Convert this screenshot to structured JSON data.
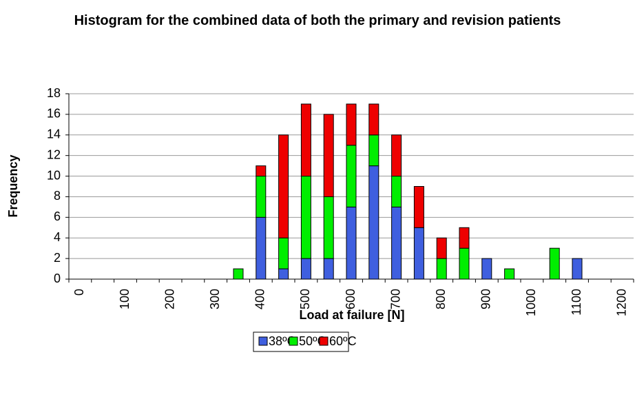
{
  "chart_data": {
    "type": "stacked_bar",
    "title": "Histogram for the combined data of both the primary and revision patients",
    "x_label": "Load at failure [N]",
    "y_label": "Frequency",
    "categories": [
      "0",
      null,
      "100",
      null,
      "200",
      null,
      "300",
      null,
      "400",
      null,
      "500",
      null,
      "600",
      null,
      "700",
      null,
      "800",
      null,
      "900",
      null,
      "1000",
      null,
      "1100",
      null,
      "1200"
    ],
    "series": [
      {
        "name": "38ºC",
        "color": "#3f5fdf",
        "values": [
          0,
          0,
          0,
          0,
          0,
          0,
          0,
          0,
          6,
          1,
          2,
          2,
          7,
          11,
          7,
          5,
          0,
          0,
          2,
          0,
          0,
          0,
          2,
          0,
          0
        ]
      },
      {
        "name": "50ºC",
        "color": "#00ee00",
        "values": [
          0,
          0,
          0,
          0,
          0,
          0,
          0,
          1,
          4,
          3,
          8,
          6,
          6,
          3,
          3,
          0,
          2,
          3,
          0,
          1,
          0,
          3,
          0,
          0,
          0
        ]
      },
      {
        "name": "60ºC",
        "color": "#ee0000",
        "values": [
          0,
          0,
          0,
          0,
          0,
          0,
          0,
          0,
          1,
          10,
          7,
          8,
          4,
          3,
          4,
          4,
          2,
          2,
          0,
          0,
          0,
          0,
          0,
          0,
          0
        ]
      }
    ],
    "ylim": [
      0,
      18
    ],
    "yticks": [
      0,
      2,
      4,
      6,
      8,
      10,
      12,
      14,
      16,
      18
    ],
    "grid": true,
    "legend": "bottom"
  }
}
